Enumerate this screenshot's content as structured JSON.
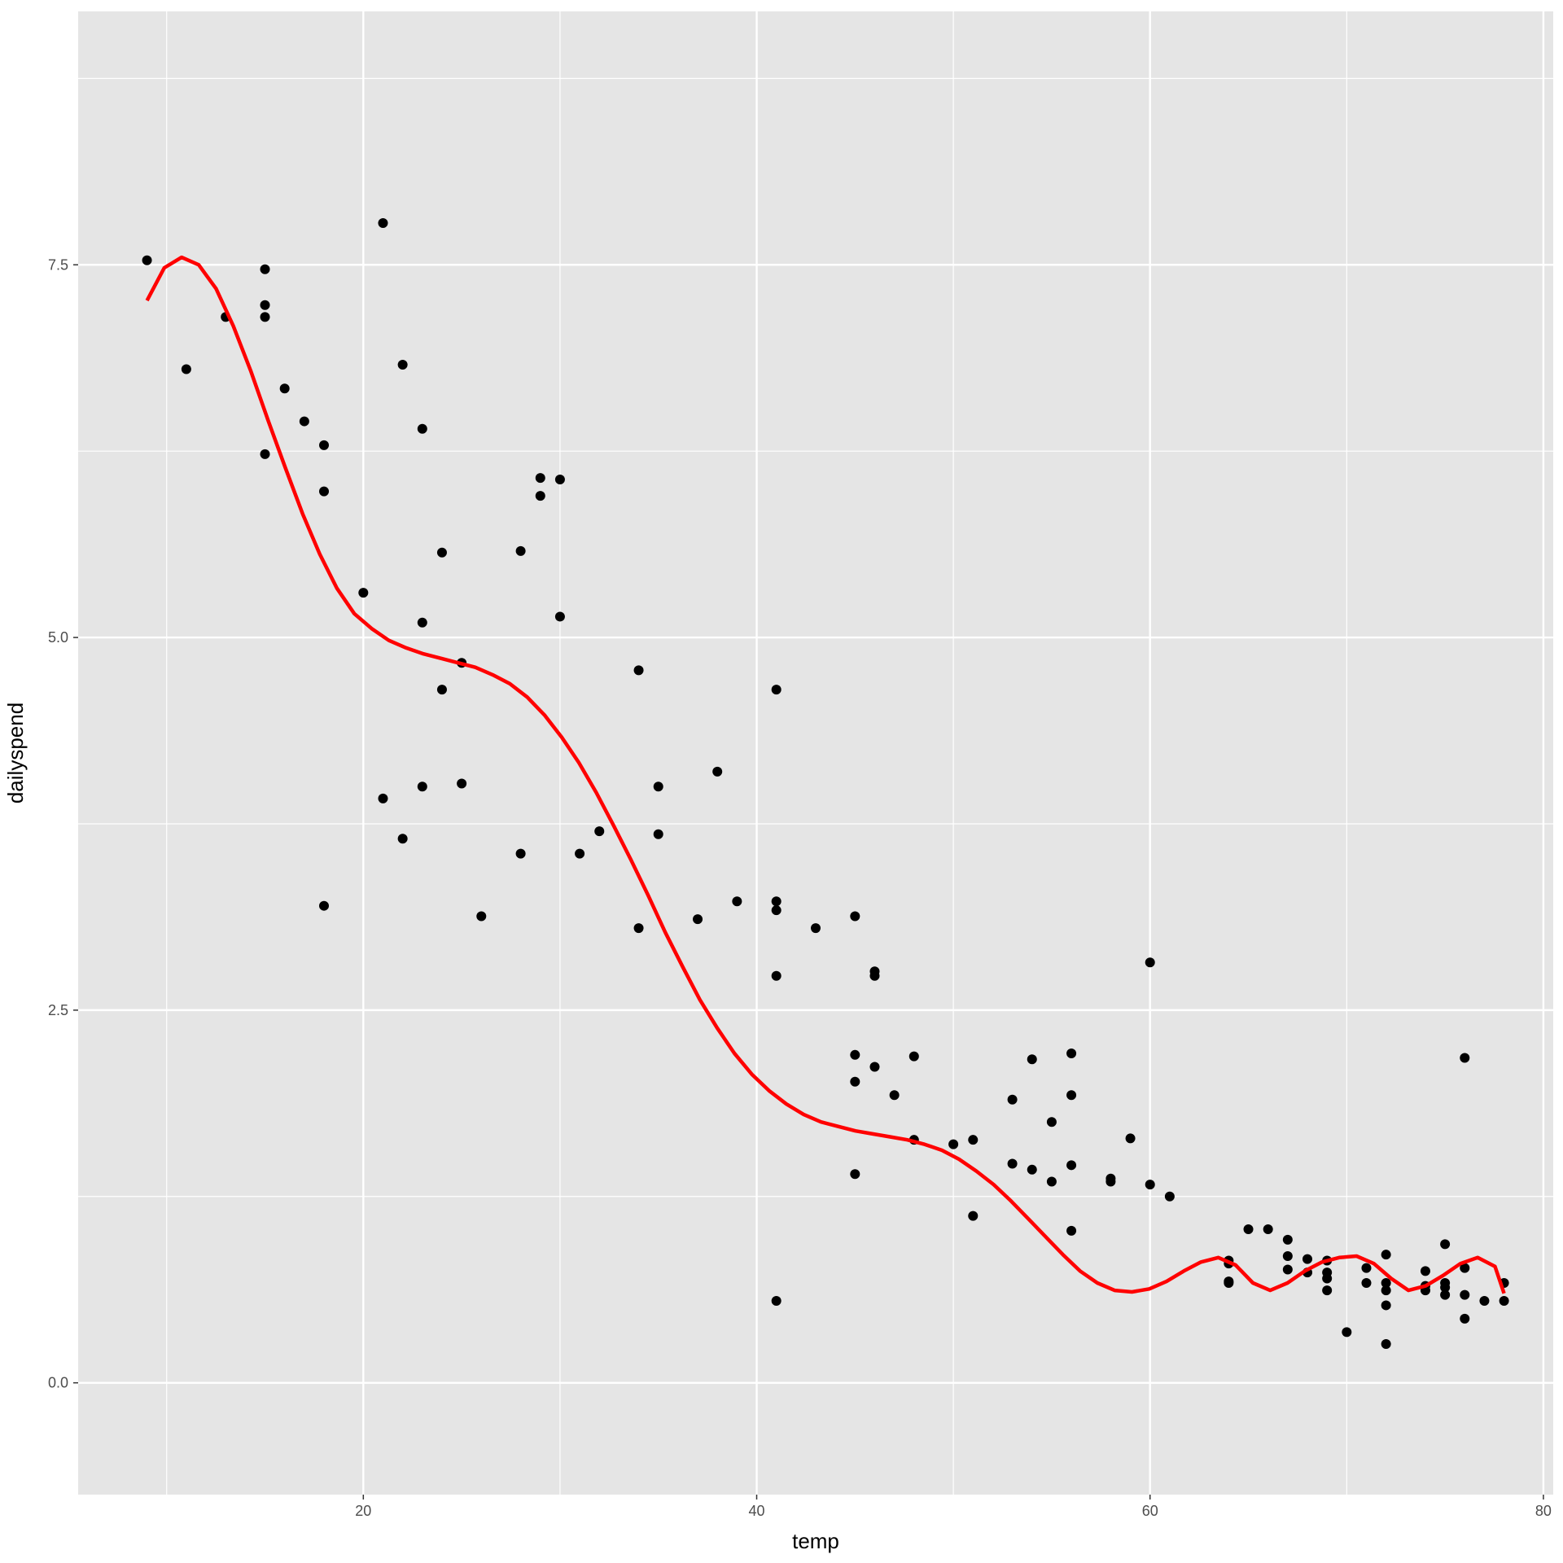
{
  "chart_data": {
    "type": "scatter",
    "title": "",
    "xlabel": "temp",
    "ylabel": "dailyspend",
    "xlim": [
      5.5,
      80.5
    ],
    "ylim": [
      -0.75,
      9.2
    ],
    "x_ticks": [
      20,
      40,
      60,
      80
    ],
    "x_tick_labels": [
      "20",
      "40",
      "60",
      "80"
    ],
    "x_minor_ticks": [
      10,
      30,
      50,
      70
    ],
    "y_ticks": [
      0.0,
      2.5,
      5.0,
      7.5
    ],
    "y_tick_labels": [
      "0.0",
      "2.5",
      "5.0",
      "7.5"
    ],
    "y_minor_ticks": [
      1.25,
      3.75,
      6.25,
      8.75
    ],
    "grid": true,
    "panel_background": "#e5e5e5",
    "grid_color": "#ffffff",
    "point_color": "#000000",
    "smooth_color": "#ff0000",
    "legend": "none",
    "series": [
      {
        "kind": "points",
        "x": [
          9,
          11,
          13,
          15,
          15,
          15,
          15,
          16,
          17,
          18,
          18,
          18,
          20,
          21,
          21,
          22,
          22,
          23,
          23,
          23,
          24,
          24,
          25,
          25,
          26,
          28,
          28,
          29,
          29,
          30,
          30,
          31,
          32,
          34,
          34,
          35,
          35,
          37,
          38,
          39,
          41,
          41,
          41,
          41,
          41,
          43,
          45,
          45,
          45,
          45,
          46,
          46,
          46,
          47,
          48,
          48,
          50,
          51,
          51,
          53,
          53,
          54,
          54,
          55,
          55,
          56,
          56,
          56,
          56,
          58,
          58,
          59,
          60,
          60,
          61,
          64,
          64,
          64,
          64,
          65,
          66,
          67,
          67,
          67,
          68,
          68,
          69,
          69,
          69,
          69,
          70,
          71,
          71,
          72,
          72,
          72,
          72,
          72,
          74,
          74,
          74,
          75,
          75,
          75,
          75,
          76,
          76,
          76,
          76,
          77,
          78,
          78
        ],
        "y": [
          7.53,
          6.8,
          7.15,
          7.47,
          7.23,
          7.15,
          6.23,
          6.67,
          6.45,
          6.29,
          5.98,
          3.2,
          5.3,
          7.78,
          3.92,
          6.83,
          3.65,
          6.4,
          5.1,
          4.0,
          5.57,
          4.65,
          4.83,
          4.02,
          3.13,
          5.58,
          3.55,
          6.07,
          5.95,
          6.06,
          5.14,
          3.55,
          3.7,
          4.78,
          3.05,
          4.0,
          3.68,
          3.11,
          4.1,
          3.23,
          4.65,
          3.23,
          3.17,
          2.73,
          0.55,
          3.05,
          3.13,
          2.2,
          2.02,
          1.4,
          2.76,
          2.73,
          2.12,
          1.93,
          2.19,
          1.63,
          1.6,
          1.63,
          1.12,
          1.9,
          1.47,
          2.17,
          1.43,
          1.75,
          1.35,
          2.21,
          1.93,
          1.46,
          1.02,
          1.37,
          1.35,
          1.64,
          1.33,
          2.82,
          1.25,
          0.8,
          0.82,
          0.68,
          0.67,
          1.03,
          1.03,
          0.96,
          0.85,
          0.76,
          0.83,
          0.74,
          0.82,
          0.74,
          0.7,
          0.62,
          0.34,
          0.77,
          0.67,
          0.86,
          0.67,
          0.62,
          0.52,
          0.26,
          0.75,
          0.65,
          0.62,
          0.93,
          0.67,
          0.64,
          0.59,
          2.18,
          0.77,
          0.59,
          0.43,
          0.55,
          0.67,
          0.55
        ]
      },
      {
        "kind": "smooth-line",
        "x": [
          9,
          9.88,
          10.76,
          11.63,
          12.51,
          13.39,
          14.27,
          15.15,
          16.03,
          16.91,
          17.78,
          18.66,
          19.54,
          20.42,
          21.3,
          22.18,
          23.06,
          23.94,
          24.81,
          25.69,
          26.57,
          27.45,
          28.33,
          29.21,
          30.09,
          30.96,
          31.84,
          32.72,
          33.6,
          34.48,
          35.36,
          36.24,
          37.11,
          37.99,
          38.87,
          39.75,
          40.63,
          41.51,
          42.39,
          43.27,
          44.14,
          45.02,
          45.9,
          46.78,
          47.66,
          48.54,
          49.42,
          50.29,
          51.17,
          52.05,
          52.93,
          53.81,
          54.69,
          55.57,
          56.44,
          57.32,
          58.2,
          59.08,
          59.96,
          60.84,
          61.72,
          62.59,
          63.47,
          64.35,
          65.23,
          66.11,
          66.99,
          67.87,
          68.75,
          69.62,
          70.5,
          71.38,
          72.26,
          73.14,
          74.02,
          74.9,
          75.78,
          76.66,
          77.54,
          78
        ],
        "y": [
          7.26,
          7.48,
          7.55,
          7.5,
          7.34,
          7.09,
          6.79,
          6.46,
          6.14,
          5.83,
          5.56,
          5.33,
          5.16,
          5.06,
          4.98,
          4.93,
          4.89,
          4.86,
          4.83,
          4.8,
          4.75,
          4.69,
          4.6,
          4.48,
          4.33,
          4.16,
          3.96,
          3.74,
          3.51,
          3.27,
          3.02,
          2.79,
          2.57,
          2.38,
          2.21,
          2.07,
          1.96,
          1.87,
          1.8,
          1.75,
          1.72,
          1.69,
          1.67,
          1.65,
          1.63,
          1.6,
          1.56,
          1.5,
          1.42,
          1.33,
          1.22,
          1.1,
          0.98,
          0.86,
          0.75,
          0.67,
          0.62,
          0.61,
          0.63,
          0.68,
          0.75,
          0.81,
          0.84,
          0.79,
          0.67,
          0.62,
          0.67,
          0.75,
          0.81,
          0.84,
          0.85,
          0.8,
          0.7,
          0.62,
          0.65,
          0.72,
          0.8,
          0.84,
          0.78,
          0.6
        ]
      }
    ]
  }
}
